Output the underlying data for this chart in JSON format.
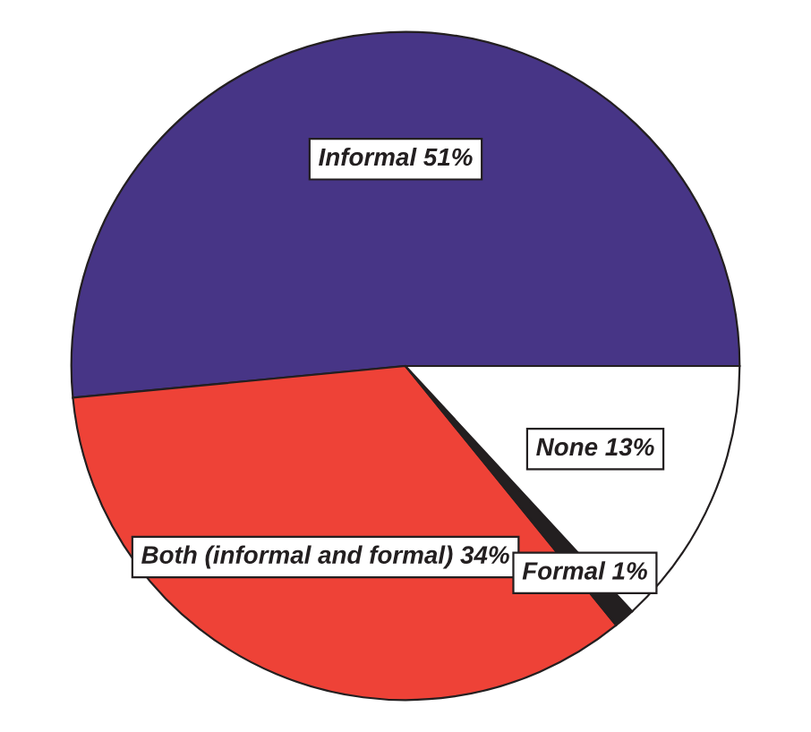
{
  "chart_data": {
    "type": "pie",
    "categories": [
      "Informal",
      "Both (informal and formal)",
      "Formal",
      "None"
    ],
    "values": [
      51,
      34,
      1,
      13
    ],
    "value_labels": [
      "51%",
      "34%",
      "1%",
      "13%"
    ],
    "colors": [
      "#473586",
      "#ee4237",
      "#231f20",
      "#ffffff"
    ]
  }
}
